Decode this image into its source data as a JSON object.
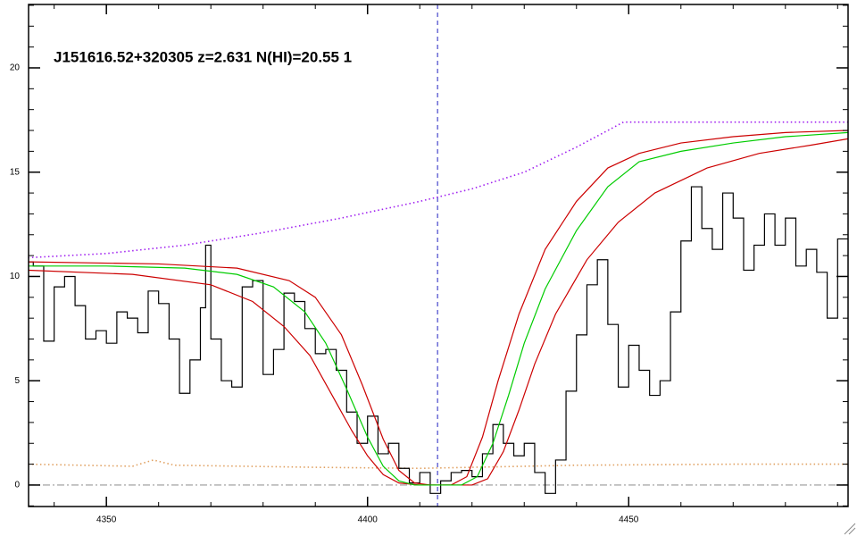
{
  "chart_data": {
    "type": "line",
    "title": "J151616.52+320305 z=2.631 N(HI)=20.55 1",
    "xlim": [
      4335.1,
      4492.0
    ],
    "ylim": [
      -1.03,
      23.04
    ],
    "xticks": [
      4350,
      4400,
      4450
    ],
    "yticks": [
      0,
      5,
      10,
      15,
      20
    ],
    "xminor_ticks": [
      4340,
      4350,
      4360,
      4370,
      4380,
      4390,
      4400,
      4410,
      4420,
      4430,
      4440,
      4450,
      4460,
      4470,
      4480,
      4490
    ],
    "yminor_ticks": [
      -1,
      0,
      1,
      2,
      3,
      4,
      5,
      6,
      7,
      8,
      9,
      10,
      11,
      12,
      13,
      14,
      15,
      16,
      17,
      18,
      19,
      20,
      21,
      22,
      23
    ],
    "vline": {
      "x": 4413.4,
      "color": "#2020c0"
    },
    "series": [
      {
        "style": "dashdot",
        "color": "#999999",
        "x": [
          4335.1,
          4492.0
        ],
        "values": [
          0,
          0
        ]
      },
      {
        "style": "dotted",
        "color": "#e0a060",
        "x": [
          4335,
          4355,
          4359,
          4363,
          4390,
          4410,
          4430,
          4440,
          4470,
          4492
        ],
        "values": [
          1.0,
          0.9,
          1.2,
          0.95,
          0.85,
          0.8,
          0.9,
          0.95,
          1.0,
          1.0
        ]
      },
      {
        "style": "dotted",
        "color": "#a020f0",
        "x": [
          4335,
          4350,
          4365,
          4380,
          4395,
          4410,
          4420,
          4430,
          4440,
          4449,
          4492
        ],
        "values": [
          10.9,
          11.1,
          11.5,
          12.1,
          12.8,
          13.6,
          14.2,
          15.0,
          16.2,
          17.4,
          17.4
        ]
      },
      {
        "style": "step",
        "color": "#000000",
        "x": [
          4335,
          4336,
          4338,
          4340,
          4342,
          4344,
          4346,
          4348,
          4350,
          4352,
          4354,
          4356,
          4358,
          4360,
          4362,
          4364,
          4366,
          4368,
          4369,
          4370,
          4372,
          4374,
          4376,
          4378,
          4380,
          4382,
          4384,
          4386,
          4388,
          4390,
          4392,
          4394,
          4396,
          4398,
          4400,
          4402,
          4404,
          4406,
          4408,
          4410,
          4412,
          4414,
          4416,
          4418,
          4420,
          4422,
          4424,
          4426,
          4428,
          4430,
          4432,
          4434,
          4436,
          4438,
          4440,
          4442,
          4444,
          4446,
          4448,
          4450,
          4452,
          4454,
          4456,
          4458,
          4460,
          4462,
          4464,
          4466,
          4468,
          4470,
          4472,
          4474,
          4476,
          4478,
          4480,
          4482,
          4484,
          4486,
          4488,
          4490
        ],
        "values": [
          10.7,
          10.5,
          6.9,
          9.5,
          10.0,
          8.6,
          7.0,
          7.4,
          6.8,
          8.3,
          8.0,
          7.3,
          9.3,
          8.7,
          7.0,
          4.4,
          6.0,
          8.5,
          11.5,
          7.0,
          5.0,
          4.7,
          9.5,
          9.8,
          5.3,
          6.5,
          9.2,
          8.8,
          7.5,
          6.3,
          6.5,
          5.5,
          3.5,
          2.0,
          3.3,
          1.5,
          2.0,
          0.8,
          0.1,
          0.6,
          -0.4,
          0.2,
          0.6,
          0.7,
          0.4,
          1.5,
          2.9,
          2.0,
          1.4,
          2.0,
          0.6,
          -0.4,
          1.2,
          4.5,
          7.2,
          9.6,
          10.8,
          7.7,
          4.7,
          6.7,
          5.5,
          4.3,
          5.0,
          8.3,
          11.7,
          14.3,
          12.3,
          11.3,
          14.0,
          12.8,
          10.3,
          11.5,
          13.0,
          11.5,
          12.8,
          10.5,
          11.3,
          10.2,
          8.0,
          11.8
        ]
      },
      {
        "style": "solid",
        "color": "#cc0000",
        "x": [
          4335,
          4360,
          4375,
          4385,
          4390,
          4395,
          4399,
          4403,
          4406,
          4409,
          4412,
          4416,
          4419,
          4422,
          4425,
          4429,
          4434,
          4440,
          4446,
          4452,
          4460,
          4470,
          4480,
          4492
        ],
        "values": [
          10.7,
          10.6,
          10.4,
          9.8,
          9.0,
          7.2,
          4.8,
          2.2,
          0.7,
          0.1,
          0,
          0,
          0.4,
          2.3,
          5.0,
          8.2,
          11.3,
          13.6,
          15.2,
          15.9,
          16.4,
          16.7,
          16.9,
          17.0
        ]
      },
      {
        "style": "solid",
        "color": "#cc0000",
        "x": [
          4335,
          4355,
          4370,
          4378,
          4384,
          4389,
          4393,
          4397,
          4400,
          4403,
          4406,
          4410,
          4420,
          4423,
          4426,
          4429,
          4432,
          4436,
          4442,
          4448,
          4455,
          4465,
          4475,
          4485,
          4492
        ],
        "values": [
          10.3,
          10.1,
          9.6,
          8.8,
          7.6,
          6.2,
          4.4,
          2.6,
          1.4,
          0.5,
          0.1,
          0,
          0,
          0.3,
          1.6,
          3.6,
          5.8,
          8.2,
          10.8,
          12.6,
          14.0,
          15.2,
          15.9,
          16.3,
          16.6
        ]
      },
      {
        "style": "solid",
        "color": "#00cc00",
        "x": [
          4335,
          4350,
          4365,
          4375,
          4382,
          4388,
          4392,
          4396,
          4400,
          4403,
          4406,
          4409,
          4418,
          4421,
          4424,
          4427,
          4430,
          4434,
          4440,
          4446,
          4452,
          4460,
          4470,
          4480,
          4492
        ],
        "values": [
          10.5,
          10.5,
          10.4,
          10.1,
          9.5,
          8.3,
          6.8,
          4.6,
          2.3,
          0.9,
          0.2,
          0,
          0,
          0.4,
          2.0,
          4.3,
          6.8,
          9.4,
          12.2,
          14.3,
          15.5,
          16.0,
          16.4,
          16.7,
          16.9
        ]
      }
    ]
  }
}
